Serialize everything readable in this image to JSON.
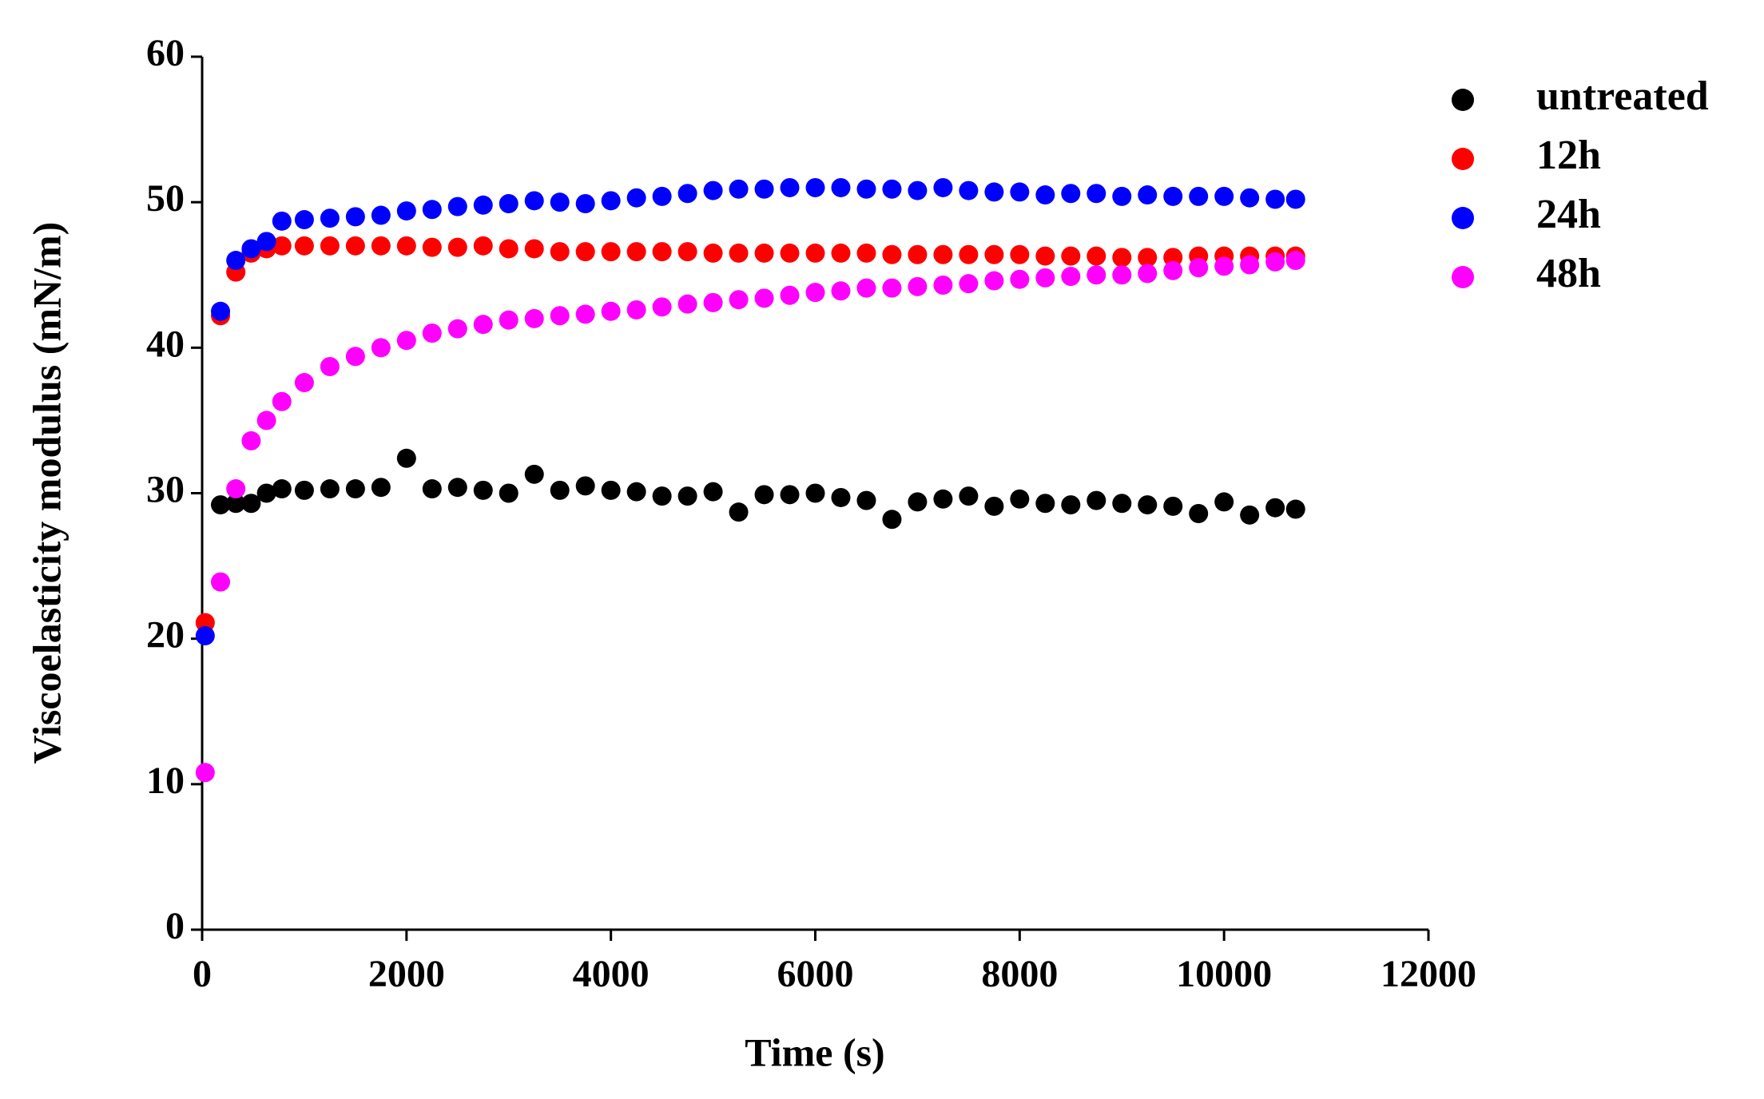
{
  "chart_data": {
    "type": "scatter",
    "x_label": "Time (s)",
    "y_label": "Viscoelasticity modulus (mN/m)",
    "x": [
      30,
      180,
      330,
      480,
      630,
      780,
      1000,
      1250,
      1500,
      1750,
      2000,
      2250,
      2500,
      2750,
      3000,
      3250,
      3500,
      3750,
      4000,
      4250,
      4500,
      4750,
      5000,
      5250,
      5500,
      5750,
      6000,
      6250,
      6500,
      6750,
      7000,
      7250,
      7500,
      7750,
      8000,
      8250,
      8500,
      8750,
      9000,
      9250,
      9500,
      9750,
      10000,
      10250,
      10500,
      10700
    ],
    "series": [
      {
        "name": "untreated",
        "color": "#000000",
        "values": [
          null,
          29.2,
          29.3,
          29.3,
          30.0,
          30.3,
          30.2,
          30.3,
          30.3,
          30.4,
          32.4,
          30.3,
          30.4,
          30.2,
          30.0,
          31.3,
          30.2,
          30.5,
          30.2,
          30.1,
          29.8,
          29.8,
          30.1,
          28.7,
          29.9,
          29.9,
          30.0,
          29.7,
          29.5,
          28.2,
          29.4,
          29.6,
          29.8,
          29.1,
          29.6,
          29.3,
          29.2,
          29.5,
          29.3,
          29.2,
          29.1,
          28.6,
          29.4,
          28.5,
          29.0,
          28.9
        ]
      },
      {
        "name": "12h",
        "color": "#ff0000",
        "values": [
          21.1,
          42.2,
          45.2,
          46.5,
          46.8,
          47.0,
          47.0,
          47.0,
          47.0,
          47.0,
          47.0,
          46.9,
          46.9,
          47.0,
          46.8,
          46.8,
          46.6,
          46.6,
          46.6,
          46.6,
          46.6,
          46.6,
          46.5,
          46.5,
          46.5,
          46.5,
          46.5,
          46.5,
          46.5,
          46.4,
          46.4,
          46.4,
          46.4,
          46.4,
          46.4,
          46.3,
          46.3,
          46.3,
          46.2,
          46.2,
          46.2,
          46.3,
          46.3,
          46.3,
          46.3,
          46.3
        ]
      },
      {
        "name": "24h",
        "color": "#0000ff",
        "values": [
          20.2,
          42.5,
          46.0,
          46.8,
          47.3,
          48.7,
          48.8,
          48.9,
          49.0,
          49.1,
          49.4,
          49.5,
          49.7,
          49.8,
          49.9,
          50.1,
          50.0,
          49.9,
          50.1,
          50.3,
          50.4,
          50.6,
          50.8,
          50.9,
          50.9,
          51.0,
          51.0,
          51.0,
          50.9,
          50.9,
          50.8,
          51.0,
          50.8,
          50.7,
          50.7,
          50.5,
          50.6,
          50.6,
          50.4,
          50.5,
          50.4,
          50.4,
          50.4,
          50.3,
          50.2,
          50.2
        ]
      },
      {
        "name": "48h",
        "color": "#ff00ff",
        "values": [
          10.8,
          23.9,
          30.3,
          33.6,
          35.0,
          36.3,
          37.6,
          38.7,
          39.4,
          40.0,
          40.5,
          41.0,
          41.3,
          41.6,
          41.9,
          42.0,
          42.2,
          42.3,
          42.5,
          42.6,
          42.8,
          43.0,
          43.1,
          43.3,
          43.4,
          43.6,
          43.8,
          43.9,
          44.1,
          44.1,
          44.2,
          44.3,
          44.4,
          44.6,
          44.7,
          44.8,
          44.9,
          45.0,
          45.0,
          45.1,
          45.3,
          45.5,
          45.6,
          45.7,
          45.9,
          46.0
        ]
      }
    ],
    "xlim": [
      0,
      12000
    ],
    "xticks": [
      0,
      2000,
      4000,
      6000,
      8000,
      10000,
      12000
    ],
    "ylim": [
      0,
      60
    ],
    "yticks": [
      0,
      10,
      20,
      30,
      40,
      50,
      60
    ],
    "legend": "upper right",
    "grid": false
  }
}
